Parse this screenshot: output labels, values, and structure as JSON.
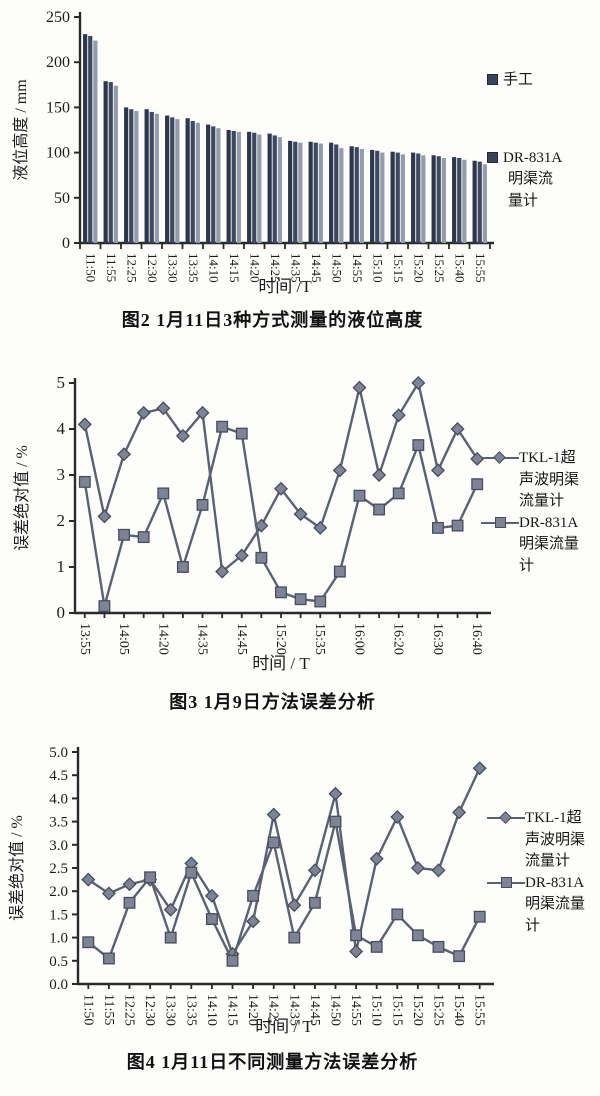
{
  "colors": {
    "axis": "#2a2a2a",
    "bar_dark1": "#2d374b",
    "bar_dark2": "#3f4860",
    "bar_light": "#949bab",
    "line": "#5b6170",
    "marker_fill": "#7e8494",
    "marker_stroke": "#474d5c"
  },
  "legends": [
    [
      {
        "marker": "square",
        "lines": [
          "手工"
        ]
      },
      {
        "marker": "square",
        "lines": [
          "DR-831A",
          "明渠流",
          "量计"
        ]
      }
    ],
    [
      {
        "marker": "diamond-line",
        "lines": [
          "TKL-1超",
          "声波明渠",
          "流量计"
        ]
      },
      {
        "marker": "square-line",
        "lines": [
          "DR-831A",
          "明渠流量",
          "计"
        ]
      }
    ],
    [
      {
        "marker": "diamond-line",
        "lines": [
          "TKL-1超",
          "声波明渠",
          "流量计"
        ]
      },
      {
        "marker": "square-line",
        "lines": [
          "DR-831A",
          "明渠流量",
          "计"
        ]
      }
    ]
  ],
  "chart_data": [
    {
      "type": "bar",
      "title": "图2  1月11日3种方式测量的液位高度",
      "xlabel": "时间 /T",
      "ylabel": "液位高度 / mm",
      "ylim": [
        0,
        250
      ],
      "ytick_values": [
        0,
        50,
        100,
        150,
        200,
        250
      ],
      "ytick_labels": [
        "0",
        "50",
        "100",
        "150",
        "200",
        "250"
      ],
      "grid": false,
      "legend_position": "right",
      "categories": [
        "11:50",
        "11:55",
        "12:25",
        "12:30",
        "13:30",
        "13:35",
        "14:10",
        "14:15",
        "14:20",
        "14:25",
        "14:35",
        "14:45",
        "14:50",
        "14:55",
        "15:10",
        "15:15",
        "15:20",
        "15:25",
        "15:40",
        "15:55"
      ],
      "series": [
        {
          "name": "手工",
          "color": "#2d374b",
          "values": [
            231,
            179,
            150,
            148,
            141,
            138,
            131,
            125,
            123,
            121,
            113,
            112,
            111,
            107,
            103,
            101,
            100,
            97,
            95,
            91
          ]
        },
        {
          "name": "",
          "color": "#3f4860",
          "values": [
            229,
            178,
            148,
            145,
            139,
            135,
            129,
            124,
            122,
            119,
            112,
            111,
            109,
            106,
            102,
            100,
            99,
            96,
            94,
            90
          ]
        },
        {
          "name": "DR-831A明渠流量计",
          "color": "#949bab",
          "values": [
            224,
            174,
            146,
            143,
            137,
            133,
            127,
            123,
            120,
            117,
            111,
            110,
            105,
            104,
            100,
            98,
            97,
            94,
            92,
            87
          ]
        }
      ]
    },
    {
      "type": "line",
      "title": "图3  1月9日方法误差分析",
      "xlabel": "时间 / T",
      "ylabel": "误差绝对值 / %",
      "ylim": [
        0,
        5
      ],
      "ytick_values": [
        0,
        1,
        2,
        3,
        4,
        5
      ],
      "ytick_labels": [
        "0",
        "1",
        "2",
        "3",
        "4",
        "5"
      ],
      "grid": false,
      "legend_position": "right",
      "categories": [
        "13:55",
        "",
        "14:05",
        "",
        "14:20",
        "",
        "14:35",
        "",
        "14:45",
        "",
        "15:20",
        "",
        "15:35",
        "",
        "16:00",
        "",
        "16:20",
        "",
        "16:30",
        "",
        "16:40"
      ],
      "series": [
        {
          "name": "TKL-1超声波明渠流量计",
          "marker": "diamond",
          "line_color": "#5b6170",
          "marker_fill": "#7e8494",
          "marker_stroke": "#474d5c",
          "values": [
            4.1,
            2.1,
            3.45,
            4.35,
            4.45,
            3.85,
            4.35,
            0.9,
            1.25,
            1.9,
            2.7,
            2.15,
            1.85,
            3.1,
            4.9,
            3.0,
            4.3,
            5.0,
            3.1,
            4.0,
            3.35
          ]
        },
        {
          "name": "DR-831A明渠流量计",
          "marker": "square",
          "line_color": "#5b6170",
          "marker_fill": "#7e8494",
          "marker_stroke": "#474d5c",
          "values": [
            2.85,
            0.15,
            1.7,
            1.65,
            2.6,
            1.0,
            2.35,
            4.05,
            3.9,
            1.2,
            0.45,
            0.3,
            0.25,
            0.9,
            2.55,
            2.25,
            2.6,
            3.65,
            1.85,
            1.9,
            2.8
          ]
        }
      ]
    },
    {
      "type": "line",
      "title": "图4  1月11日不同测量方法误差分析",
      "xlabel": "时间 / T",
      "ylabel": "误差绝对值 / %",
      "ylim": [
        0,
        5
      ],
      "ytick_values": [
        0,
        0.5,
        1,
        1.5,
        2,
        2.5,
        3,
        3.5,
        4,
        4.5,
        5
      ],
      "ytick_labels": [
        "0.0",
        "0.5",
        "1.0",
        "1.5",
        "2.0",
        "2.5",
        "3.0",
        "3.5",
        "4.0",
        "4.5",
        "5.0"
      ],
      "grid": false,
      "legend_position": "right",
      "categories": [
        "11:50",
        "11:55",
        "12:25",
        "12:30",
        "13:30",
        "13:35",
        "14:10",
        "14:15",
        "14:20",
        "14:25",
        "14:35",
        "14:45",
        "14:50",
        "14:55",
        "15:10",
        "15:15",
        "15:20",
        "15:25",
        "15:40",
        "15:55"
      ],
      "series": [
        {
          "name": "TKL-1超声波明渠流量计",
          "marker": "diamond",
          "line_color": "#5b6170",
          "marker_fill": "#7e8494",
          "marker_stroke": "#474d5c",
          "values": [
            2.25,
            1.95,
            2.15,
            2.25,
            1.6,
            2.6,
            1.9,
            0.65,
            1.35,
            3.65,
            1.7,
            2.45,
            4.1,
            0.7,
            2.7,
            3.6,
            2.5,
            2.45,
            3.7,
            4.65
          ]
        },
        {
          "name": "DR-831A明渠流量计",
          "marker": "square",
          "line_color": "#5b6170",
          "marker_fill": "#7e8494",
          "marker_stroke": "#474d5c",
          "values": [
            0.9,
            0.55,
            1.75,
            2.3,
            1.0,
            2.4,
            1.4,
            0.5,
            1.9,
            3.05,
            1.0,
            1.75,
            3.5,
            1.05,
            0.8,
            1.5,
            1.05,
            0.8,
            0.6,
            1.45
          ]
        }
      ]
    }
  ]
}
